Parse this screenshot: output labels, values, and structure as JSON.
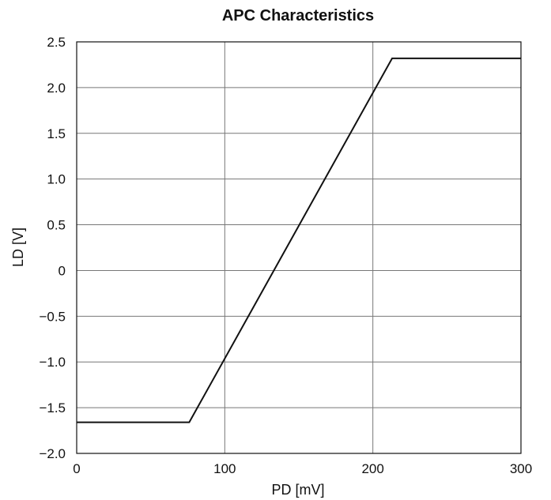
{
  "chart_data": {
    "type": "line",
    "title": "APC Characteristics",
    "xlabel": "PD [mV]",
    "ylabel": "LD [V]",
    "xlim": [
      0,
      300
    ],
    "ylim": [
      -2.0,
      2.5
    ],
    "x_ticks": [
      0,
      100,
      200,
      300
    ],
    "x_tick_labels": [
      "0",
      "100",
      "200",
      "300"
    ],
    "y_ticks": [
      2.5,
      2.0,
      1.5,
      1.0,
      0.5,
      0,
      -0.5,
      -1.0,
      -1.5,
      -2.0
    ],
    "y_tick_labels": [
      "2.5",
      "2.0",
      "1.5",
      "1.0",
      "0.5",
      "0",
      "−0.5",
      "−1.0",
      "−1.5",
      "−2.0"
    ],
    "grid": true,
    "series": [
      {
        "x": [
          0,
          76,
          213,
          300
        ],
        "y": [
          -1.66,
          -1.66,
          2.32,
          2.32
        ]
      }
    ]
  }
}
